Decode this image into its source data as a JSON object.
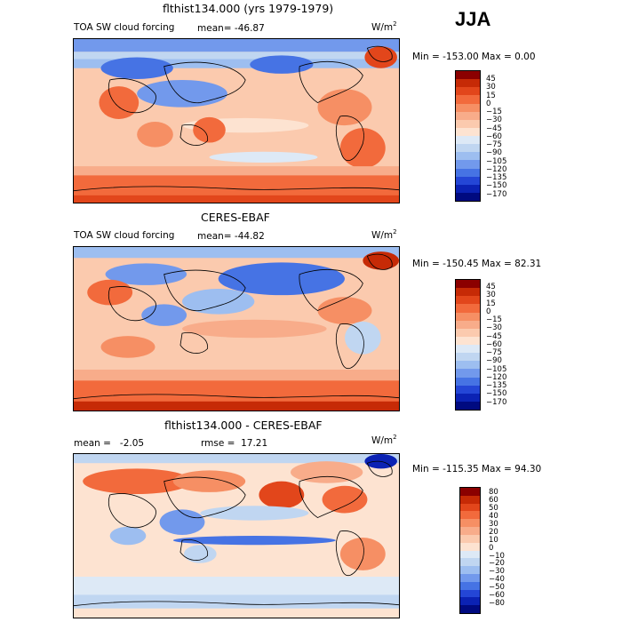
{
  "season": "JJA",
  "panels": [
    {
      "title": "flthist134.000 (yrs 1979-1979)",
      "left_label": "TOA SW cloud forcing",
      "mean_text": "mean= -46.87",
      "units_base": "W/m",
      "units_exp": "2",
      "minmax_text": "Min = -153.00 Max =    0.00",
      "legend_ticks": [
        "45",
        "30",
        "15",
        "0",
        "−15",
        "−30",
        "−45",
        "−60",
        "−75",
        "−90",
        "−105",
        "−120",
        "−135",
        "−150",
        "−170"
      ],
      "legend_colors": [
        "#8b0000",
        "#c62a06",
        "#e2461b",
        "#f26a3c",
        "#f68f64",
        "#f8ac8a",
        "#fbcaae",
        "#fde3d1",
        "#dde9f6",
        "#c0d6f1",
        "#9dbef0",
        "#7299ec",
        "#4673e4",
        "#2446d6",
        "#0b22b4",
        "#000a80"
      ]
    },
    {
      "title": "CERES-EBAF",
      "left_label": "TOA SW cloud forcing",
      "mean_text": "mean= -44.82",
      "units_base": "W/m",
      "units_exp": "2",
      "minmax_text": "Min = -150.45 Max =  82.31",
      "legend_ticks": [
        "45",
        "30",
        "15",
        "0",
        "−15",
        "−30",
        "−45",
        "−60",
        "−75",
        "−90",
        "−105",
        "−120",
        "−135",
        "−150",
        "−170"
      ],
      "legend_colors": [
        "#8b0000",
        "#c62a06",
        "#e2461b",
        "#f26a3c",
        "#f68f64",
        "#f8ac8a",
        "#fbcaae",
        "#fde3d1",
        "#dde9f6",
        "#c0d6f1",
        "#9dbef0",
        "#7299ec",
        "#4673e4",
        "#2446d6",
        "#0b22b4",
        "#000a80"
      ]
    },
    {
      "title": "flthist134.000 - CERES-EBAF",
      "left_label": "mean =   -2.05",
      "mean_text": "rmse =  17.21",
      "units_base": "W/m",
      "units_exp": "2",
      "minmax_text": "Min = -115.35 Max =  94.30",
      "legend_ticks": [
        "80",
        "60",
        "50",
        "40",
        "30",
        "20",
        "10",
        "0",
        "−10",
        "−20",
        "−30",
        "−40",
        "−50",
        "−60",
        "−80"
      ],
      "legend_colors": [
        "#8b0000",
        "#c62a06",
        "#e2461b",
        "#f26a3c",
        "#f68f64",
        "#f8ac8a",
        "#fbcaae",
        "#fde3d1",
        "#dde9f6",
        "#c0d6f1",
        "#9dbef0",
        "#7299ec",
        "#4673e4",
        "#2446d6",
        "#0b22b4",
        "#000a80"
      ]
    }
  ]
}
